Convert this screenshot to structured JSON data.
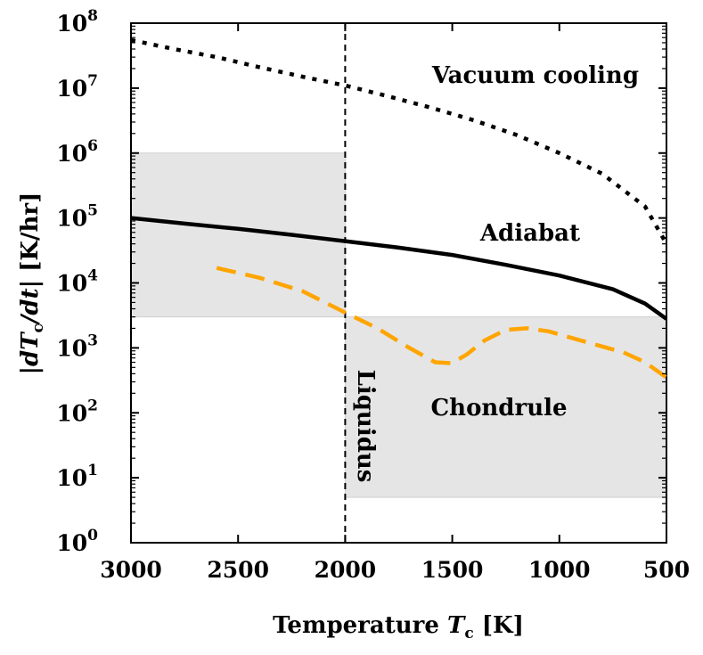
{
  "chart_data": {
    "type": "line",
    "xlabel": "Temperature T_c [K]",
    "ylabel": "|dT_c/dt| [K/hr]",
    "x_axis": {
      "reversed": true,
      "range": [
        3000,
        500
      ],
      "ticks": [
        "3000",
        "2500",
        "2000",
        "1500",
        "1000",
        "500"
      ]
    },
    "y_axis": {
      "scale": "log",
      "range": [
        1,
        100000000
      ],
      "tick_base": "10",
      "tick_exponents": [
        "0",
        "1",
        "2",
        "3",
        "4",
        "5",
        "6",
        "7",
        "8"
      ]
    },
    "grid": false,
    "regions": [
      {
        "label": "",
        "x": [
          3000,
          2000
        ],
        "y": [
          3000,
          1000000
        ],
        "color": "#e5e5e5"
      },
      {
        "label": "Chondrule",
        "x": [
          2000,
          500
        ],
        "y": [
          5,
          3000
        ],
        "color": "#e5e5e5"
      }
    ],
    "vertical_lines": [
      {
        "label": "Liquidus",
        "x": 2000,
        "style": "dashed",
        "color": "#000000"
      }
    ],
    "series": [
      {
        "label": "Vacuum cooling",
        "style": "dotted",
        "color": "#000000",
        "x": [
          3000,
          2800,
          2600,
          2400,
          2200,
          2000,
          1800,
          1600,
          1400,
          1200,
          1000,
          800,
          600,
          500
        ],
        "y": [
          55000000,
          40000000,
          30000000,
          21000000,
          15000000,
          11000000,
          7500000,
          5000000,
          3200000,
          1900000,
          1000000,
          480000,
          150000,
          40000
        ]
      },
      {
        "label": "Adiabat",
        "style": "solid",
        "color": "#000000",
        "x": [
          3000,
          2750,
          2500,
          2250,
          2000,
          1750,
          1500,
          1250,
          1000,
          750,
          600,
          500
        ],
        "y": [
          100000,
          82000,
          68000,
          55000,
          44000,
          35000,
          27000,
          19000,
          13000,
          8000,
          4800,
          2800
        ]
      },
      {
        "label": "",
        "style": "dashed",
        "color": "#ffa500",
        "x": [
          2600,
          2400,
          2200,
          2000,
          1850,
          1700,
          1580,
          1500,
          1430,
          1350,
          1250,
          1150,
          1050,
          900,
          800,
          700,
          600,
          500
        ],
        "y": [
          17000,
          12000,
          7500,
          3500,
          2000,
          1000,
          600,
          580,
          800,
          1300,
          1900,
          2000,
          1800,
          1300,
          1050,
          850,
          600,
          350
        ]
      }
    ]
  }
}
